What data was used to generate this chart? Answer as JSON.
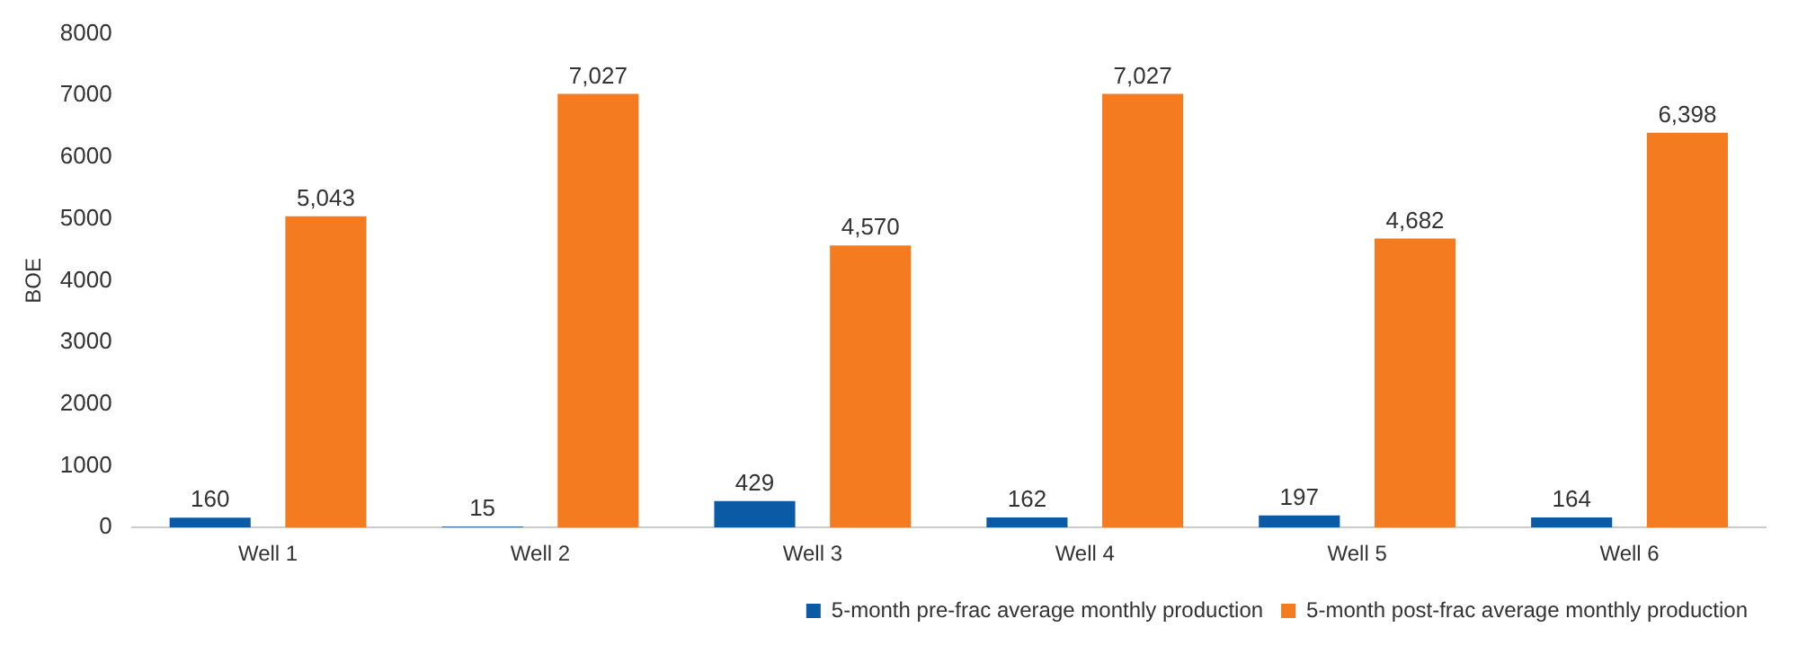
{
  "chart_data": {
    "type": "bar",
    "ylabel": "BOE",
    "categories": [
      "Well 1",
      "Well 2",
      "Well 3",
      "Well 4",
      "Well 5",
      "Well 6"
    ],
    "series": [
      {
        "name": "5-month pre-frac average monthly production",
        "color": "#0b5aa6",
        "values": [
          160,
          15,
          429,
          162,
          197,
          164
        ],
        "value_labels": [
          "160",
          "15",
          "429",
          "162",
          "197",
          "164"
        ]
      },
      {
        "name": "5-month post-frac average monthly production",
        "color": "#f47b20",
        "values": [
          5043,
          7027,
          4570,
          7027,
          4682,
          6398
        ],
        "value_labels": [
          "5,043",
          "7,027",
          "4,570",
          "7,027",
          "4,682",
          "6,398"
        ]
      }
    ],
    "ylim": [
      0,
      8000
    ],
    "yticks": [
      0,
      1000,
      2000,
      3000,
      4000,
      5000,
      6000,
      7000,
      8000
    ],
    "grid": false,
    "legend": "bottom right"
  }
}
